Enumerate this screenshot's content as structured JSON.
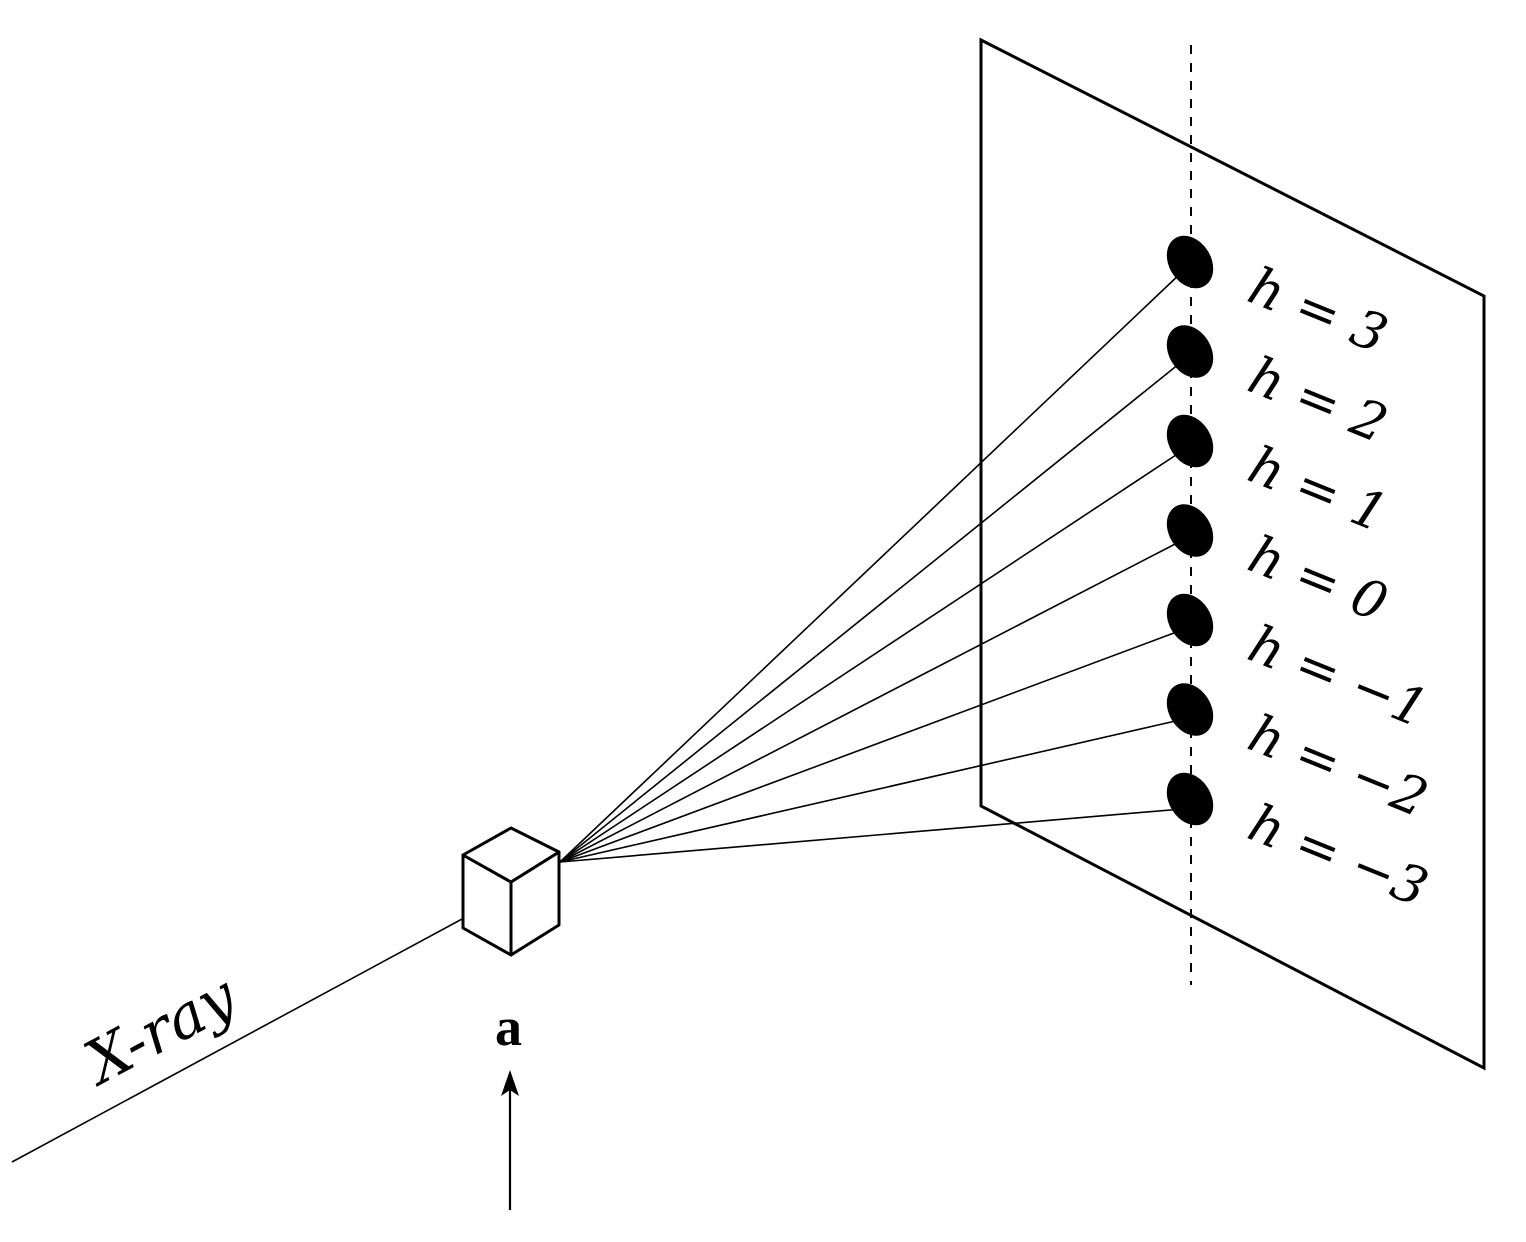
{
  "diagram": {
    "beam_label": "X-ray",
    "vector_label": "a",
    "reflections": [
      {
        "h": "3",
        "label": "h = 3"
      },
      {
        "h": "2",
        "label": "h = 2"
      },
      {
        "h": "1",
        "label": "h = 1"
      },
      {
        "h": "0",
        "label": "h = 0"
      },
      {
        "h": "-1",
        "label": "h = −1"
      },
      {
        "h": "-2",
        "label": "h = −2"
      },
      {
        "h": "-3",
        "label": "h = −3"
      }
    ],
    "colors": {
      "stroke": "#000000",
      "background": "#ffffff",
      "spot": "#000000"
    }
  }
}
